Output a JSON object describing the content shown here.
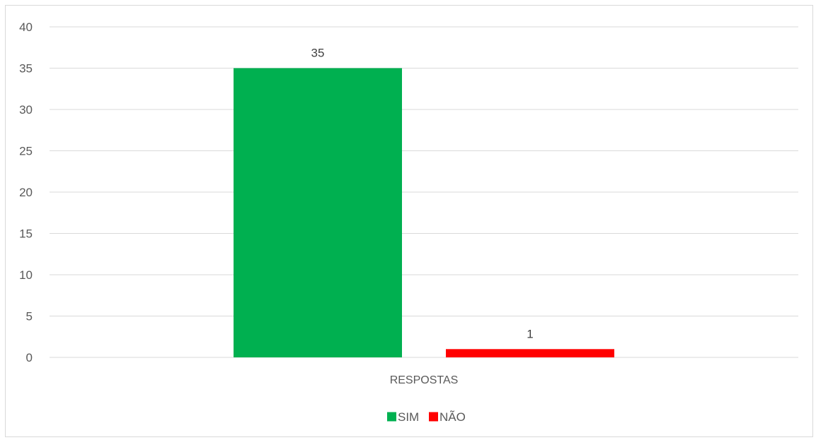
{
  "chart_data": {
    "type": "bar",
    "categories": [
      "RESPOSTAS"
    ],
    "series": [
      {
        "name": "SIM",
        "values": [
          35
        ],
        "color": "#00B050"
      },
      {
        "name": "NÃO",
        "values": [
          1
        ],
        "color": "#FF0000"
      }
    ],
    "ylim": [
      0,
      40
    ],
    "yticks": [
      0,
      5,
      10,
      15,
      20,
      25,
      30,
      35,
      40
    ],
    "data_labels": true,
    "grid": true,
    "legend_position": "bottom"
  }
}
